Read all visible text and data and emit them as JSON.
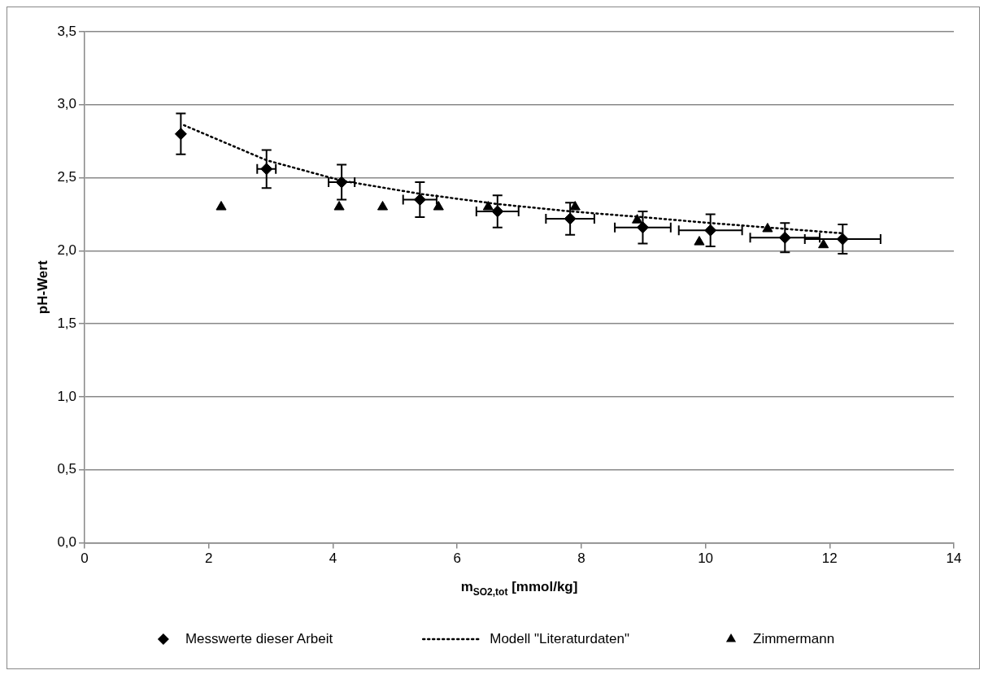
{
  "chart_data": {
    "type": "scatter",
    "xlabel": "m$_{SO2,tot}$ [mmol/kg]",
    "ylabel": "pH-Wert",
    "xlim": [
      0,
      14
    ],
    "xticks": [
      0,
      2,
      4,
      6,
      8,
      10,
      12,
      14
    ],
    "ylim": [
      0,
      3.5
    ],
    "yticks": [
      {
        "value": 0,
        "label": "0,0"
      },
      {
        "value": 0.5,
        "label": "0,5"
      },
      {
        "value": 1,
        "label": "1,0"
      },
      {
        "value": 1.5,
        "label": "1,5"
      },
      {
        "value": 2,
        "label": "2,0"
      },
      {
        "value": 2.5,
        "label": "2,5"
      },
      {
        "value": 3,
        "label": "3,0"
      },
      {
        "value": 3.5,
        "label": "3,5"
      }
    ],
    "grid": "y",
    "legend": "bottom",
    "series": [
      {
        "name": "Messwerte dieser Arbeit",
        "type": "scatter",
        "marker": "diamond",
        "color": "#000000",
        "x": [
          1.55,
          2.93,
          4.14,
          5.4,
          6.65,
          7.82,
          8.99,
          10.08,
          11.28,
          12.21
        ],
        "values": [
          2.8,
          2.56,
          2.47,
          2.35,
          2.27,
          2.22,
          2.16,
          2.14,
          2.09,
          2.08
        ],
        "errors": [
          0.14,
          0.13,
          0.12,
          0.12,
          0.11,
          0.11,
          0.11,
          0.11,
          0.1,
          0.1
        ],
        "xerrors": [
          null,
          0.15,
          0.21,
          0.27,
          0.34,
          0.39,
          0.45,
          0.51,
          0.56,
          0.61
        ]
      },
      {
        "name": "Modell \"Literaturdaten\"",
        "type": "line",
        "marker": "none",
        "line_style": "dotted",
        "color": "#000000",
        "x": [
          1.6,
          2.93,
          4.14,
          5.4,
          6.65,
          7.82,
          8.99,
          10.08,
          11.28,
          12.2
        ],
        "values": [
          2.86,
          2.62,
          2.48,
          2.39,
          2.32,
          2.27,
          2.23,
          2.19,
          2.15,
          2.12
        ]
      },
      {
        "name": "Zimmermann",
        "type": "scatter",
        "marker": "triangle",
        "color": "#000000",
        "x": [
          2.2,
          4.1,
          4.8,
          5.7,
          6.5,
          7.9,
          8.9,
          9.9,
          11.0,
          11.9
        ],
        "values": [
          2.3,
          2.3,
          2.3,
          2.3,
          2.3,
          2.3,
          2.21,
          2.06,
          2.15,
          2.04
        ]
      }
    ]
  }
}
